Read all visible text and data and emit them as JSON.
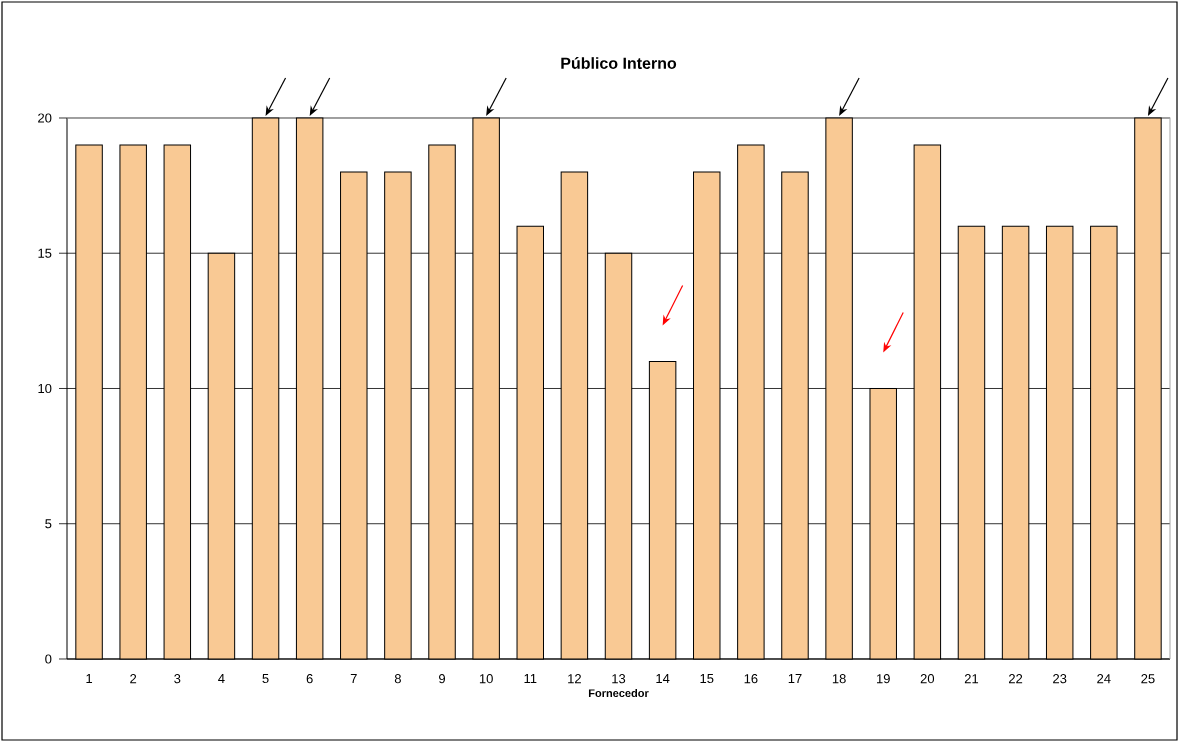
{
  "chart_data": {
    "type": "bar",
    "title": "Público Interno",
    "xlabel": "Fornecedor",
    "categories": [
      "1",
      "2",
      "3",
      "4",
      "5",
      "6",
      "7",
      "8",
      "9",
      "10",
      "11",
      "12",
      "13",
      "14",
      "15",
      "16",
      "17",
      "18",
      "19",
      "20",
      "21",
      "22",
      "23",
      "24",
      "25"
    ],
    "values": [
      19,
      19,
      19,
      15,
      20,
      20,
      18,
      18,
      19,
      20,
      16,
      18,
      15,
      11,
      18,
      19,
      18,
      20,
      10,
      19,
      16,
      16,
      16,
      16,
      20
    ],
    "color": "#f9c994",
    "ylim": [
      0,
      20
    ],
    "yticks": [
      0,
      5,
      10,
      15,
      20
    ],
    "grid": "y"
  }
}
